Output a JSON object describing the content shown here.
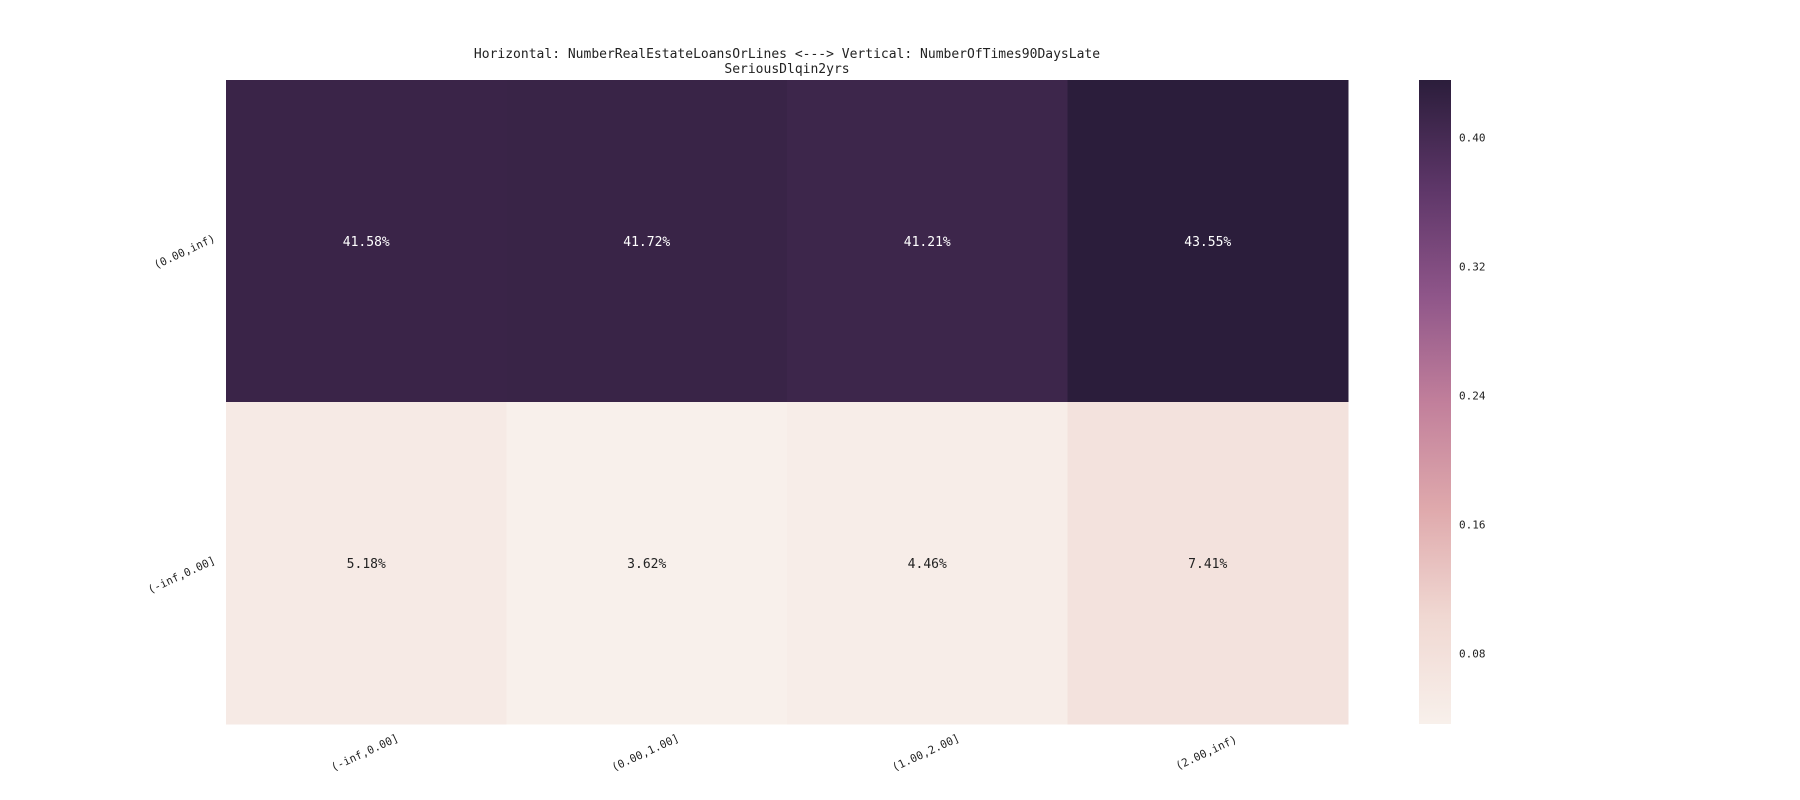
{
  "chart_data": {
    "type": "heatmap",
    "title": "Horizontal: NumberRealEstateLoansOrLines <---> Vertical: NumberOfTimes90DaysLate",
    "subtitle": "SeriousDlqin2yrs",
    "x_categories": [
      "(-inf,0.00]",
      "(0.00,1.00]",
      "(1.00,2.00]",
      "(2.00,inf)"
    ],
    "y_categories": [
      "(0.00,inf)",
      "(-inf,0.00]"
    ],
    "values": [
      [
        0.4158,
        0.4172,
        0.4121,
        0.4355
      ],
      [
        0.0518,
        0.0362,
        0.0446,
        0.0741
      ]
    ],
    "cell_labels": [
      [
        "41.58%",
        "41.72%",
        "41.21%",
        "43.55%"
      ],
      [
        "5.18%",
        "3.62%",
        "4.46%",
        "7.41%"
      ]
    ],
    "colorbar": {
      "range": [
        0.0362,
        0.4355
      ],
      "ticks": [
        0.08,
        0.16,
        0.24,
        0.32,
        0.4
      ],
      "tick_labels": [
        "0.08",
        "0.16",
        "0.24",
        "0.32",
        "0.40"
      ],
      "colors": [
        "#f8f0eb",
        "#f0d8d2",
        "#dfa9ac",
        "#c17f9b",
        "#8e5589",
        "#5d3668",
        "#2b1d3b"
      ]
    },
    "grid": false
  }
}
